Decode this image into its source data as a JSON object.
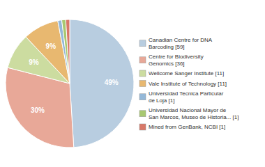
{
  "chart_data": {
    "type": "pie",
    "categories": [
      "Canadian Centre for DNA\nBarcoding [59]",
      "Centre for Biodiversity\nGenomics [36]",
      "Wellcome Sanger Institute [11]",
      "Vale Institute of Technology [11]",
      "Universidad Tecnica Particular\nde Loja [1]",
      "Universidad Nacional Mayor de\nSan Marcos, Museo de Historia... [1]",
      "Mined from GenBank, NCBI [1]"
    ],
    "values": [
      49,
      30,
      9,
      9,
      1,
      1,
      1
    ],
    "value_labels": [
      "49%",
      "30%",
      "9%",
      "9%",
      null,
      null,
      null
    ],
    "colors": [
      "#b8cde0",
      "#e8a898",
      "#ccdca0",
      "#e8b870",
      "#94b8d8",
      "#a8c870",
      "#d87868"
    ],
    "data_labels": true,
    "legend": "right"
  }
}
